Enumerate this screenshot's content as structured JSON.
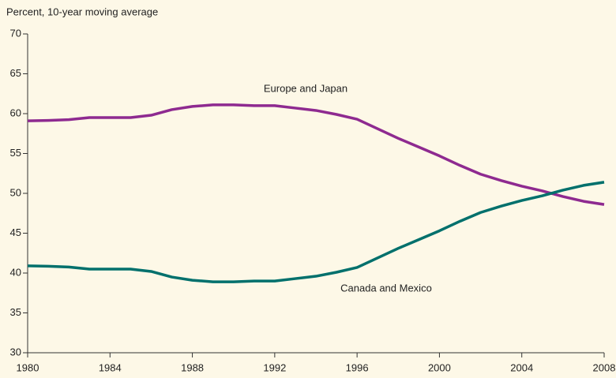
{
  "chart_data": {
    "type": "line",
    "ylabel": "Percent, 10-year moving average",
    "x": [
      1980,
      1981,
      1982,
      1983,
      1984,
      1985,
      1986,
      1987,
      1988,
      1989,
      1990,
      1991,
      1992,
      1993,
      1994,
      1995,
      1996,
      1997,
      1998,
      1999,
      2000,
      2001,
      2002,
      2003,
      2004,
      2005,
      2006,
      2007,
      2008
    ],
    "series": [
      {
        "name": "Europe and Japan",
        "color": "#8e2a90",
        "values": [
          59.1,
          59.15,
          59.25,
          59.5,
          59.5,
          59.5,
          59.8,
          60.5,
          60.9,
          61.1,
          61.1,
          61.0,
          61.0,
          60.7,
          60.4,
          59.9,
          59.3,
          58.1,
          56.9,
          55.8,
          54.7,
          53.5,
          52.4,
          51.6,
          50.9,
          50.3,
          49.6,
          49.0,
          48.6
        ]
      },
      {
        "name": "Canada and Mexico",
        "color": "#00706c",
        "values": [
          40.9,
          40.85,
          40.75,
          40.5,
          40.5,
          40.5,
          40.2,
          39.5,
          39.1,
          38.9,
          38.9,
          39.0,
          39.0,
          39.3,
          39.6,
          40.1,
          40.7,
          41.9,
          43.1,
          44.2,
          45.3,
          46.5,
          47.6,
          48.4,
          49.1,
          49.7,
          50.4,
          51.0,
          51.4
        ]
      }
    ],
    "xlim": [
      1980,
      2008
    ],
    "xticks": [
      1980,
      1984,
      1988,
      1992,
      1996,
      2000,
      2004,
      2008
    ],
    "ylim": [
      30,
      70
    ],
    "yticks": [
      30,
      35,
      40,
      45,
      50,
      55,
      60,
      65,
      70
    ]
  }
}
